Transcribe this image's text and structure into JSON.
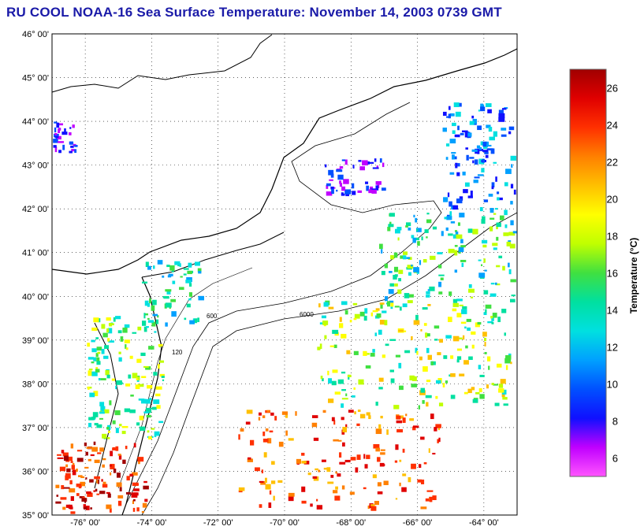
{
  "title": "RU COOL  NOAA-16  Sea Surface Temperature:  November 14, 2003 0739 GMT",
  "map": {
    "lon_ticks": [
      "-76° 00'",
      "-74° 00'",
      "-72° 00'",
      "-70° 00'",
      "-68° 00'",
      "-66° 00'",
      "-64° 00'"
    ],
    "lat_ticks": [
      "46° 00'",
      "45° 00'",
      "44° 00'",
      "43° 00'",
      "42° 00'",
      "41° 00'",
      "40° 00'",
      "39° 00'",
      "38° 00'",
      "37° 00'",
      "36° 00'",
      "35° 00'"
    ],
    "lon_range": [
      -77,
      -63
    ],
    "lat_range": [
      35,
      46
    ],
    "contour_labels": [
      "120",
      "600",
      "6000"
    ],
    "grid": true
  },
  "colorbar": {
    "title": "Temperature (°C)",
    "ticks": [
      "26",
      "24",
      "22",
      "20",
      "18",
      "16",
      "14",
      "12",
      "10",
      "8",
      "6"
    ],
    "range": [
      5,
      27
    ],
    "colors": [
      "#ff55ff",
      "#c000ff",
      "#1010ff",
      "#0050ff",
      "#00a0ff",
      "#00e0e0",
      "#00e0a0",
      "#40e040",
      "#c0ff00",
      "#ffff00",
      "#ffc000",
      "#ff8000",
      "#ff3000",
      "#e00000",
      "#a00000"
    ]
  }
}
